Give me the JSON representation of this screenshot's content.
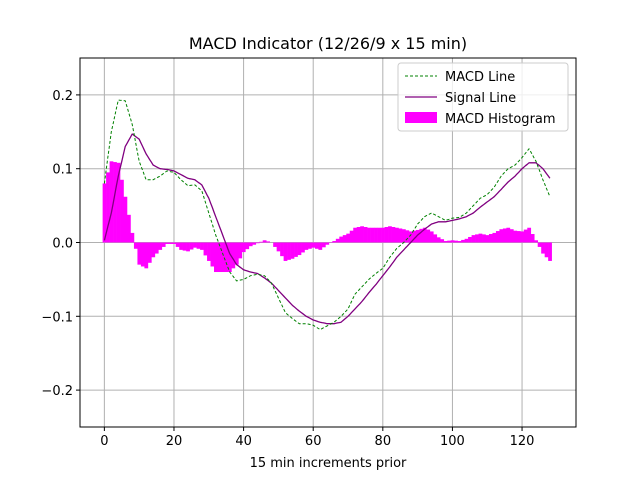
{
  "chart_data": {
    "type": "line",
    "title": "MACD Indicator (12/26/9 x 15 min)",
    "xlabel": "15 min increments prior",
    "ylabel": "",
    "xlim": [
      -7,
      135.5
    ],
    "ylim": [
      -0.25,
      0.25
    ],
    "grid": true,
    "legend_position": "top-right",
    "xticks": [
      0,
      20,
      40,
      60,
      80,
      100,
      120
    ],
    "xtick_labels": [
      "0",
      "20",
      "40",
      "60",
      "80",
      "100",
      "120"
    ],
    "yticks": [
      -0.2,
      -0.1,
      0.0,
      0.1,
      0.2
    ],
    "ytick_labels": [
      "−0.2",
      "−0.1",
      "0.0",
      "0.1",
      "0.2"
    ],
    "x": [
      0,
      2,
      4,
      6,
      8,
      10,
      12,
      14,
      16,
      18,
      20,
      22,
      24,
      26,
      28,
      30,
      32,
      34,
      36,
      38,
      40,
      42,
      44,
      46,
      48,
      50,
      52,
      54,
      56,
      58,
      60,
      62,
      64,
      66,
      68,
      70,
      72,
      74,
      76,
      78,
      80,
      82,
      84,
      86,
      88,
      90,
      92,
      94,
      96,
      98,
      100,
      102,
      104,
      106,
      108,
      110,
      112,
      114,
      116,
      118,
      120,
      122,
      124,
      126,
      128
    ],
    "series": [
      {
        "name": "MACD Line",
        "color": "#008000",
        "style": "dashed",
        "values": [
          0.08,
          0.15,
          0.193,
          0.192,
          0.16,
          0.11,
          0.085,
          0.085,
          0.09,
          0.097,
          0.095,
          0.085,
          0.077,
          0.078,
          0.07,
          0.04,
          0.01,
          -0.015,
          -0.04,
          -0.052,
          -0.05,
          -0.045,
          -0.043,
          -0.045,
          -0.055,
          -0.075,
          -0.095,
          -0.103,
          -0.11,
          -0.11,
          -0.112,
          -0.118,
          -0.113,
          -0.108,
          -0.1,
          -0.09,
          -0.07,
          -0.06,
          -0.05,
          -0.042,
          -0.035,
          -0.02,
          -0.008,
          0,
          0.01,
          0.025,
          0.035,
          0.04,
          0.035,
          0.03,
          0.033,
          0.034,
          0.04,
          0.05,
          0.06,
          0.065,
          0.075,
          0.09,
          0.1,
          0.105,
          0.115,
          0.127,
          0.11,
          0.085,
          0.062
        ]
      },
      {
        "name": "Signal Line",
        "color": "#800080",
        "style": "solid",
        "values": [
          0.003,
          0.04,
          0.09,
          0.13,
          0.147,
          0.14,
          0.12,
          0.105,
          0.1,
          0.099,
          0.097,
          0.092,
          0.087,
          0.085,
          0.078,
          0.06,
          0.035,
          0.01,
          -0.015,
          -0.03,
          -0.037,
          -0.04,
          -0.042,
          -0.048,
          -0.055,
          -0.065,
          -0.075,
          -0.085,
          -0.093,
          -0.1,
          -0.105,
          -0.108,
          -0.11,
          -0.11,
          -0.108,
          -0.1,
          -0.09,
          -0.08,
          -0.068,
          -0.057,
          -0.045,
          -0.033,
          -0.02,
          -0.01,
          0,
          0.01,
          0.018,
          0.025,
          0.028,
          0.028,
          0.03,
          0.032,
          0.035,
          0.04,
          0.048,
          0.055,
          0.062,
          0.072,
          0.082,
          0.09,
          0.1,
          0.108,
          0.108,
          0.1,
          0.087
        ]
      },
      {
        "name": "MACD Histogram",
        "color": "#ff00ff",
        "style": "bar",
        "values": [
          0.08,
          0.11,
          0.108,
          0.062,
          0.013,
          -0.03,
          -0.035,
          -0.02,
          -0.01,
          -0.002,
          -0.002,
          -0.01,
          -0.012,
          -0.007,
          -0.01,
          -0.025,
          -0.04,
          -0.04,
          -0.04,
          -0.03,
          -0.013,
          -0.005,
          -0.001,
          0.003,
          0,
          -0.012,
          -0.025,
          -0.022,
          -0.017,
          -0.01,
          -0.007,
          -0.01,
          -0.003,
          0.002,
          0.008,
          0.012,
          0.02,
          0.022,
          0.02,
          0.02,
          0.02,
          0.022,
          0.02,
          0.018,
          0.015,
          0.017,
          0.02,
          0.015,
          0.007,
          0.002,
          0.003,
          0.002,
          0.005,
          0.01,
          0.012,
          0.01,
          0.013,
          0.018,
          0.02,
          0.016,
          0.015,
          0.02,
          0.003,
          -0.015,
          -0.025
        ]
      }
    ]
  }
}
